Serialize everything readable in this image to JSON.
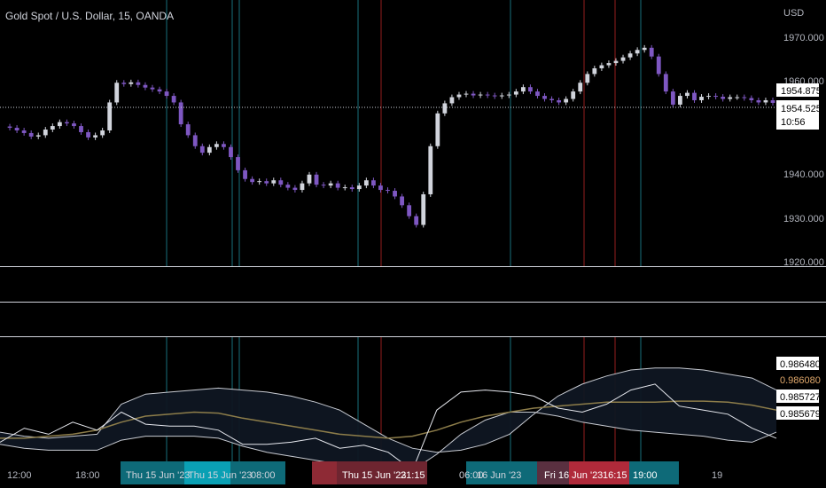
{
  "header": {
    "title": "Gold Spot / U.S. Dollar, 15, OANDA",
    "currency": "USD"
  },
  "price_panel": {
    "y_ticks": [
      "1970.000",
      "1960.000",
      "1940.000",
      "1930.000",
      "1920.000"
    ],
    "last_price": "1954.875",
    "crosshair_price": "1954.525",
    "countdown": "10:56"
  },
  "indicator_panel": {
    "labels": [
      "0.986480",
      "0.986080",
      "0.985727",
      "0.985679"
    ],
    "label_colors": [
      "#ffffff",
      "#e0a86b",
      "#ffffff",
      "#ffffff"
    ]
  },
  "x_axis": {
    "ticks": [
      "12:00",
      "18:00",
      "06:00",
      "19"
    ],
    "highlight_labels": [
      "Thu 15 Jun '23",
      "Thu 15 Jun '23",
      "08:00",
      "Thu 15 Jun '23",
      "21:15",
      "16 Jun '23",
      "Fri 16 Jun '23",
      "16:15",
      "19:00"
    ]
  },
  "colors": {
    "background": "#000000",
    "candle_up": "#d1d4dc",
    "candle_down": "#7e57c2",
    "blue_vline": "#2196a6",
    "red_vline": "#c62828",
    "teal_label": "#0e6a78",
    "red_label": "#8e2a35",
    "band": "#c8cbd2",
    "mid": "#8d7d4a"
  },
  "chart_data": [
    {
      "type": "line",
      "title": "Gold Spot / U.S. Dollar, 15, OANDA",
      "ylabel": "USD",
      "ylim": [
        1920,
        1975
      ],
      "series": [
        {
          "values": [
            1949.5,
            1949.2,
            1948.6,
            1948.0,
            1947.2,
            1947.5,
            1948.8,
            1949.6,
            1950.5,
            1950.2,
            1949.6,
            1948.2,
            1947.0,
            1947.5,
            1948.6,
            1955.0,
            1959.5,
            1959.2,
            1959.6,
            1959.0,
            1958.4,
            1958.0,
            1957.5,
            1956.5,
            1955.0,
            1950.0,
            1947.5,
            1945.0,
            1943.5,
            1944.8,
            1945.5,
            1944.8,
            1942.5,
            1939.5,
            1937.5,
            1936.8,
            1937.0,
            1936.5,
            1937.2,
            1936.2,
            1935.5,
            1935.0,
            1936.5,
            1938.5,
            1936.2,
            1936.0,
            1936.5,
            1935.5,
            1935.6,
            1935.2,
            1936.0,
            1937.2,
            1936.0,
            1935.0,
            1934.8,
            1933.5,
            1931.5,
            1929.0,
            1927.0,
            1934.0,
            1945.0,
            1952.5,
            1954.8,
            1956.2,
            1956.8,
            1957.0,
            1956.6,
            1956.8,
            1956.6,
            1956.4,
            1956.6,
            1956.8,
            1957.5,
            1958.5,
            1957.5,
            1956.5,
            1955.8,
            1955.5,
            1955.0,
            1955.8,
            1957.5,
            1959.5,
            1961.5,
            1962.8,
            1963.5,
            1964.0,
            1964.5,
            1965.3,
            1966.2,
            1967.0,
            1967.5,
            1965.5,
            1961.5,
            1957.5,
            1954.5,
            1956.5,
            1957.2,
            1955.5,
            1956.3,
            1956.5,
            1956.3,
            1955.8,
            1956.2,
            1956.2,
            1956.0,
            1955.5,
            1955.0,
            1955.5,
            1954.9
          ]
        }
      ],
      "y_ticks": [
        1970,
        1960,
        1940,
        1930,
        1920
      ],
      "last_value": 1954.875,
      "grid": false
    },
    {
      "type": "line",
      "ylim": [
        0.9854,
        0.9866
      ],
      "series": [
        {
          "values": [
            0.98578,
            0.98574,
            0.98572,
            0.98574,
            0.98576,
            0.98606,
            0.98616,
            0.98618,
            0.9862,
            0.98622,
            0.9862,
            0.98618,
            0.98614,
            0.98608,
            0.986,
            0.98586,
            0.98572,
            0.98562,
            0.98558,
            0.9856,
            0.98566,
            0.98576,
            0.98596,
            0.98614,
            0.98626,
            0.98634,
            0.9864,
            0.98642,
            0.98642,
            0.9864,
            0.98636,
            0.98632,
            0.9862
          ]
        },
        {
          "values": [
            0.98572,
            0.98572,
            0.98574,
            0.98576,
            0.9858,
            0.98588,
            0.98594,
            0.98596,
            0.98598,
            0.98597,
            0.98592,
            0.98588,
            0.98584,
            0.9858,
            0.98576,
            0.98574,
            0.98572,
            0.98574,
            0.9858,
            0.98588,
            0.98594,
            0.98598,
            0.98602,
            0.98604,
            0.98606,
            0.98608,
            0.98608,
            0.98608,
            0.98609,
            0.98609,
            0.98608,
            0.98605,
            0.986
          ]
        },
        {
          "values": [
            0.98566,
            0.98562,
            0.9856,
            0.9856,
            0.9856,
            0.9857,
            0.98574,
            0.98574,
            0.98574,
            0.98572,
            0.98564,
            0.98558,
            0.98554,
            0.9855,
            0.98546,
            0.98538,
            0.98536,
            0.9854,
            0.98556,
            0.98576,
            0.9859,
            0.98598,
            0.98598,
            0.98594,
            0.98588,
            0.98584,
            0.9858,
            0.98578,
            0.98576,
            0.98574,
            0.9857,
            0.98568,
            0.98578
          ]
        },
        {
          "values": [
            0.98568,
            0.98582,
            0.98576,
            0.98588,
            0.9858,
            0.98598,
            0.98586,
            0.98584,
            0.98584,
            0.9858,
            0.98566,
            0.98566,
            0.98568,
            0.98572,
            0.98562,
            0.98565,
            0.98558,
            0.9854,
            0.986,
            0.98618,
            0.9862,
            0.98618,
            0.98614,
            0.98602,
            0.98598,
            0.98606,
            0.9862,
            0.98626,
            0.98604,
            0.986,
            0.98596,
            0.98582,
            0.98572
          ]
        }
      ],
      "last_values": [
        0.98648,
        0.98608,
        0.985727,
        0.985679
      ],
      "grid": false
    }
  ]
}
